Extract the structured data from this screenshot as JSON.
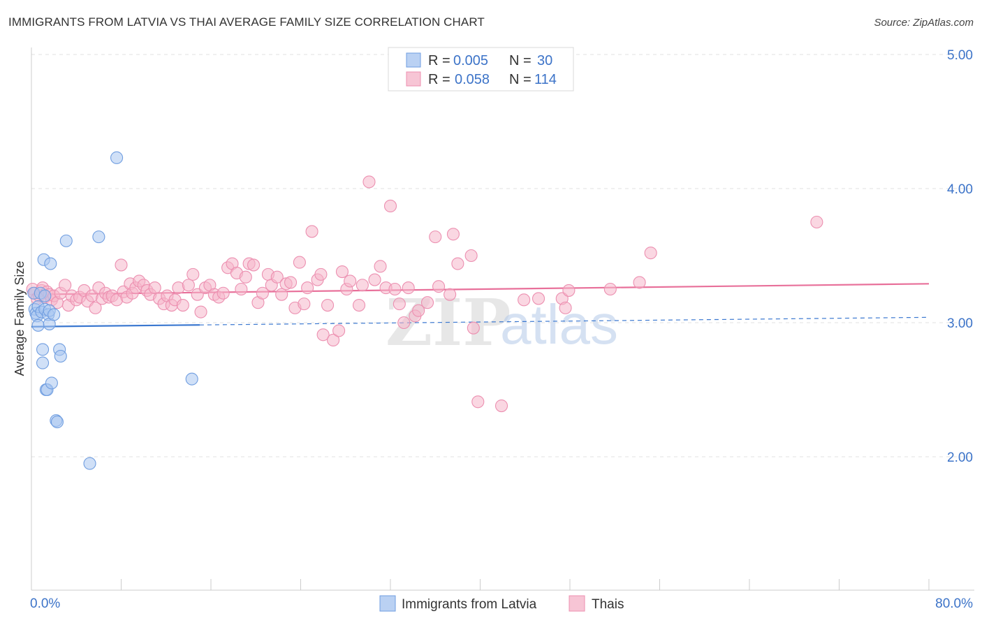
{
  "title": "IMMIGRANTS FROM LATVIA VS THAI AVERAGE FAMILY SIZE CORRELATION CHART",
  "source": "Source: ZipAtlas.com",
  "watermark": {
    "zip": "ZIP",
    "atlas": "atlas"
  },
  "colors": {
    "blue": "#3b78d0",
    "blue_fill": "#a9c6f0",
    "pink": "#e8709a",
    "pink_fill": "#f5b6cb",
    "axis_label": "#3c73c8",
    "grid": "#e0e0e0"
  },
  "legend": {
    "rows": [
      {
        "r_label": "R = ",
        "r_value": "0.005",
        "n_label": "N = ",
        "n_value": "30"
      },
      {
        "r_label": "R = ",
        "r_value": "0.058",
        "n_label": "N = ",
        "n_value": "114"
      }
    ]
  },
  "bottom_legend": {
    "series1": "Immigrants from Latvia",
    "series2": "Thais"
  },
  "chart_data": {
    "type": "scatter",
    "title": "IMMIGRANTS FROM LATVIA VS THAI AVERAGE FAMILY SIZE CORRELATION CHART",
    "xlabel": "",
    "ylabel": "Average Family Size",
    "xlim": [
      0,
      80
    ],
    "ylim": [
      1.0,
      5.1
    ],
    "x_tick_labels": [
      {
        "value": 0,
        "label": "0.0%"
      },
      {
        "value": 80,
        "label": "80.0%"
      }
    ],
    "x_minor_ticks": [
      8,
      16,
      24,
      32,
      40,
      48,
      56,
      64,
      72,
      80
    ],
    "y_ticks": [
      {
        "value": 2.0,
        "label": "2.00"
      },
      {
        "value": 3.0,
        "label": "3.00"
      },
      {
        "value": 4.0,
        "label": "4.00"
      },
      {
        "value": 5.0,
        "label": "5.00"
      }
    ],
    "series": [
      {
        "name": "Immigrants from Latvia",
        "R": 0.005,
        "N": 30,
        "trend": {
          "x0": 0,
          "y0": 2.97,
          "x1": 80,
          "y1": 3.04,
          "solid_until": 15
        },
        "points": [
          [
            0.2,
            3.22
          ],
          [
            0.3,
            3.1
          ],
          [
            0.4,
            3.07
          ],
          [
            0.5,
            3.05
          ],
          [
            0.6,
            3.12
          ],
          [
            0.6,
            2.98
          ],
          [
            0.8,
            3.22
          ],
          [
            0.9,
            3.08
          ],
          [
            1.0,
            2.7
          ],
          [
            1.0,
            2.8
          ],
          [
            1.1,
            3.47
          ],
          [
            1.2,
            3.2
          ],
          [
            1.2,
            3.1
          ],
          [
            1.3,
            2.5
          ],
          [
            1.4,
            2.5
          ],
          [
            1.5,
            3.06
          ],
          [
            1.6,
            3.09
          ],
          [
            1.7,
            3.44
          ],
          [
            1.6,
            2.99
          ],
          [
            1.8,
            2.55
          ],
          [
            2.0,
            3.06
          ],
          [
            2.2,
            2.27
          ],
          [
            2.3,
            2.26
          ],
          [
            2.5,
            2.8
          ],
          [
            2.6,
            2.75
          ],
          [
            3.1,
            3.61
          ],
          [
            5.2,
            1.95
          ],
          [
            6.0,
            3.64
          ],
          [
            7.6,
            4.23
          ],
          [
            14.3,
            2.58
          ]
        ]
      },
      {
        "name": "Thais",
        "R": 0.058,
        "N": 114,
        "trend": {
          "x0": 0,
          "y0": 3.21,
          "x1": 80,
          "y1": 3.29
        },
        "points": [
          [
            0.1,
            3.25
          ],
          [
            0.3,
            3.22
          ],
          [
            0.5,
            3.18
          ],
          [
            0.7,
            3.2
          ],
          [
            0.9,
            3.24
          ],
          [
            1.0,
            3.26
          ],
          [
            1.2,
            3.19
          ],
          [
            1.4,
            3.23
          ],
          [
            1.6,
            3.21
          ],
          [
            1.8,
            3.17
          ],
          [
            2.0,
            3.2
          ],
          [
            2.3,
            3.15
          ],
          [
            2.6,
            3.22
          ],
          [
            3.0,
            3.28
          ],
          [
            3.3,
            3.13
          ],
          [
            3.6,
            3.2
          ],
          [
            4.0,
            3.17
          ],
          [
            4.3,
            3.19
          ],
          [
            4.7,
            3.24
          ],
          [
            5.0,
            3.16
          ],
          [
            5.4,
            3.2
          ],
          [
            5.7,
            3.11
          ],
          [
            6.0,
            3.26
          ],
          [
            6.3,
            3.18
          ],
          [
            6.6,
            3.22
          ],
          [
            6.9,
            3.19
          ],
          [
            7.2,
            3.2
          ],
          [
            7.6,
            3.17
          ],
          [
            8.0,
            3.43
          ],
          [
            8.2,
            3.23
          ],
          [
            8.5,
            3.19
          ],
          [
            8.8,
            3.29
          ],
          [
            9.0,
            3.22
          ],
          [
            9.3,
            3.26
          ],
          [
            9.6,
            3.31
          ],
          [
            10.0,
            3.28
          ],
          [
            10.3,
            3.24
          ],
          [
            10.6,
            3.21
          ],
          [
            11.0,
            3.26
          ],
          [
            11.4,
            3.18
          ],
          [
            11.8,
            3.14
          ],
          [
            12.1,
            3.2
          ],
          [
            12.5,
            3.13
          ],
          [
            12.8,
            3.17
          ],
          [
            13.1,
            3.26
          ],
          [
            13.5,
            3.13
          ],
          [
            14.0,
            3.28
          ],
          [
            14.4,
            3.36
          ],
          [
            14.8,
            3.21
          ],
          [
            15.1,
            3.08
          ],
          [
            15.5,
            3.26
          ],
          [
            15.9,
            3.28
          ],
          [
            16.3,
            3.21
          ],
          [
            16.7,
            3.19
          ],
          [
            17.1,
            3.22
          ],
          [
            17.5,
            3.41
          ],
          [
            17.9,
            3.44
          ],
          [
            18.3,
            3.37
          ],
          [
            18.7,
            3.25
          ],
          [
            19.1,
            3.34
          ],
          [
            19.4,
            3.44
          ],
          [
            19.8,
            3.43
          ],
          [
            20.2,
            3.15
          ],
          [
            20.6,
            3.22
          ],
          [
            21.1,
            3.36
          ],
          [
            21.4,
            3.28
          ],
          [
            21.9,
            3.34
          ],
          [
            22.3,
            3.21
          ],
          [
            22.7,
            3.29
          ],
          [
            23.1,
            3.3
          ],
          [
            23.5,
            3.11
          ],
          [
            23.9,
            3.45
          ],
          [
            24.3,
            3.14
          ],
          [
            24.6,
            3.26
          ],
          [
            25.0,
            3.68
          ],
          [
            25.5,
            3.32
          ],
          [
            25.8,
            3.36
          ],
          [
            26.0,
            2.91
          ],
          [
            26.4,
            3.13
          ],
          [
            26.9,
            2.87
          ],
          [
            27.4,
            2.94
          ],
          [
            27.7,
            3.38
          ],
          [
            28.1,
            3.25
          ],
          [
            28.4,
            3.31
          ],
          [
            29.2,
            3.13
          ],
          [
            29.5,
            3.28
          ],
          [
            30.1,
            4.05
          ],
          [
            30.6,
            3.32
          ],
          [
            31.1,
            3.42
          ],
          [
            31.6,
            3.26
          ],
          [
            32.0,
            3.87
          ],
          [
            32.4,
            3.25
          ],
          [
            32.8,
            3.14
          ],
          [
            33.2,
            3.0
          ],
          [
            33.6,
            3.26
          ],
          [
            34.2,
            3.05
          ],
          [
            34.5,
            3.09
          ],
          [
            35.3,
            3.15
          ],
          [
            36.0,
            3.64
          ],
          [
            36.3,
            3.27
          ],
          [
            37.3,
            3.21
          ],
          [
            37.6,
            3.66
          ],
          [
            38.0,
            3.44
          ],
          [
            39.2,
            3.5
          ],
          [
            39.4,
            2.96
          ],
          [
            39.8,
            2.41
          ],
          [
            41.9,
            2.38
          ],
          [
            43.9,
            3.17
          ],
          [
            45.2,
            3.18
          ],
          [
            47.3,
            3.18
          ],
          [
            47.6,
            3.11
          ],
          [
            47.9,
            3.24
          ],
          [
            51.6,
            3.25
          ],
          [
            54.2,
            3.3
          ],
          [
            55.2,
            3.52
          ],
          [
            70.0,
            3.75
          ]
        ]
      }
    ]
  }
}
